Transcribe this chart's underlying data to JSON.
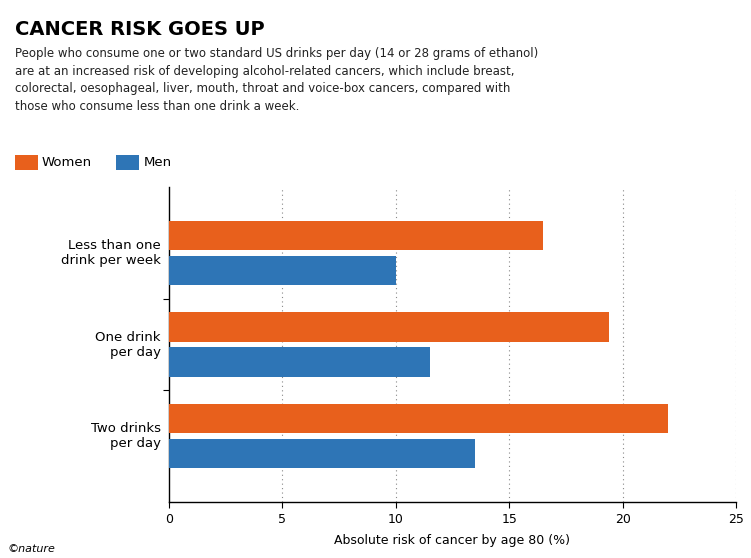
{
  "title": "CANCER RISK GOES UP",
  "subtitle": "People who consume one or two standard US drinks per day (14 or 28 grams of ethanol)\nare at an increased risk of developing alcohol-related cancers, which include breast,\ncolorectal, oesophageal, liver, mouth, throat and voice-box cancers, compared with\nthose who consume less than one drink a week.",
  "categories": [
    "Less than one\ndrink per week",
    "One drink\nper day",
    "Two drinks\nper day"
  ],
  "women_values": [
    16.5,
    19.4,
    22.0
  ],
  "men_values": [
    10.0,
    11.5,
    13.5
  ],
  "women_color": "#E8601C",
  "men_color": "#2E75B6",
  "xlabel": "Absolute risk of cancer by age 80 (%)",
  "xlim": [
    0,
    25
  ],
  "xticks": [
    0,
    5,
    10,
    15,
    20,
    25
  ],
  "legend_labels": [
    "Women",
    "Men"
  ],
  "footer": "©nature",
  "bar_height": 0.32,
  "grid_color": "#888888",
  "background_color": "#ffffff"
}
